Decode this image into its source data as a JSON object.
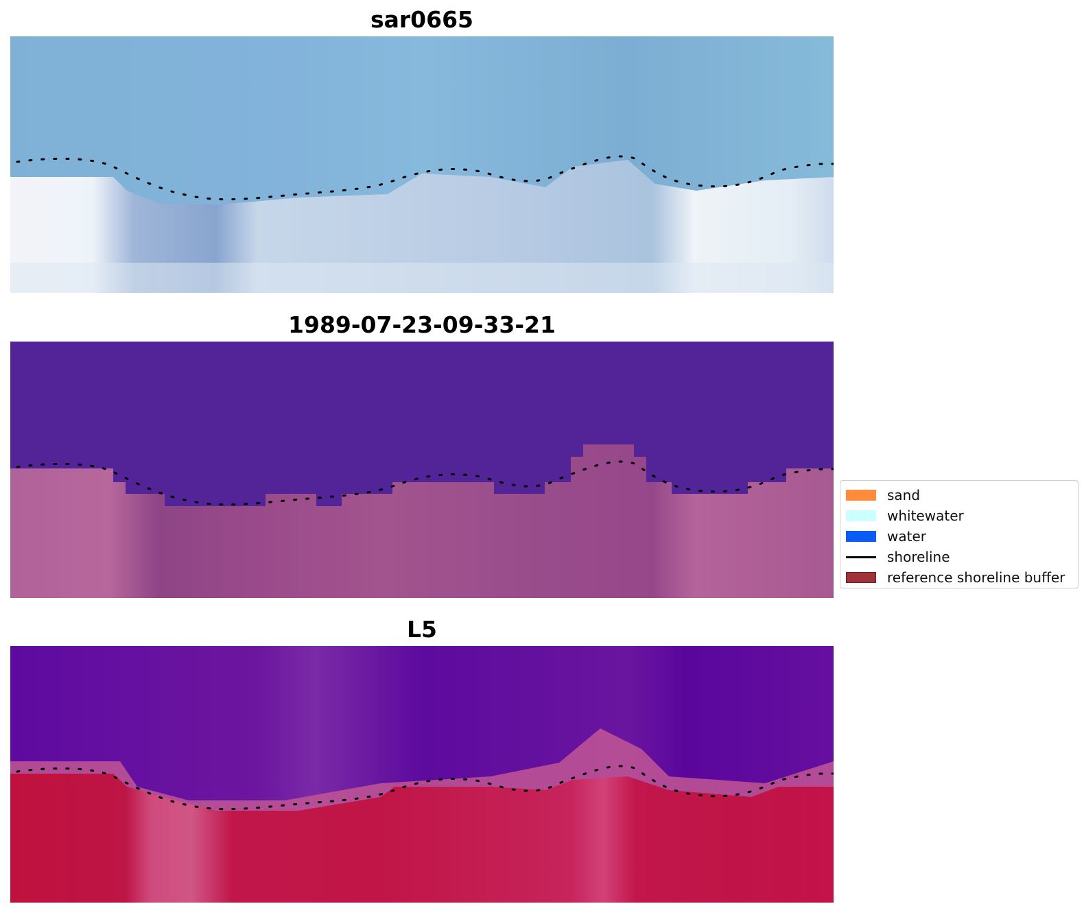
{
  "panels": [
    {
      "title": "sar0665",
      "image": "sar-rgb"
    },
    {
      "title": "1989-07-23-09-33-21",
      "image": "classification"
    },
    {
      "title": "L5",
      "image": "index"
    }
  ],
  "legend": {
    "items": [
      {
        "label": "sand",
        "color": "#ff8c3a",
        "kind": "patch"
      },
      {
        "label": "whitewater",
        "color": "#ccffff",
        "kind": "patch"
      },
      {
        "label": "water",
        "color": "#0a5cf5",
        "kind": "patch"
      },
      {
        "label": "shoreline",
        "color": "#000000",
        "kind": "line"
      },
      {
        "label": "reference shoreline buffer",
        "color": "#a0333a",
        "kind": "patch"
      }
    ]
  },
  "colors": {
    "sar_water": "#7fb0d4",
    "sar_land": "#dfe7f2",
    "class_water": "#532497",
    "class_land": "#a3538d",
    "index_water": "#5e089f",
    "index_land": "#bf1548"
  }
}
